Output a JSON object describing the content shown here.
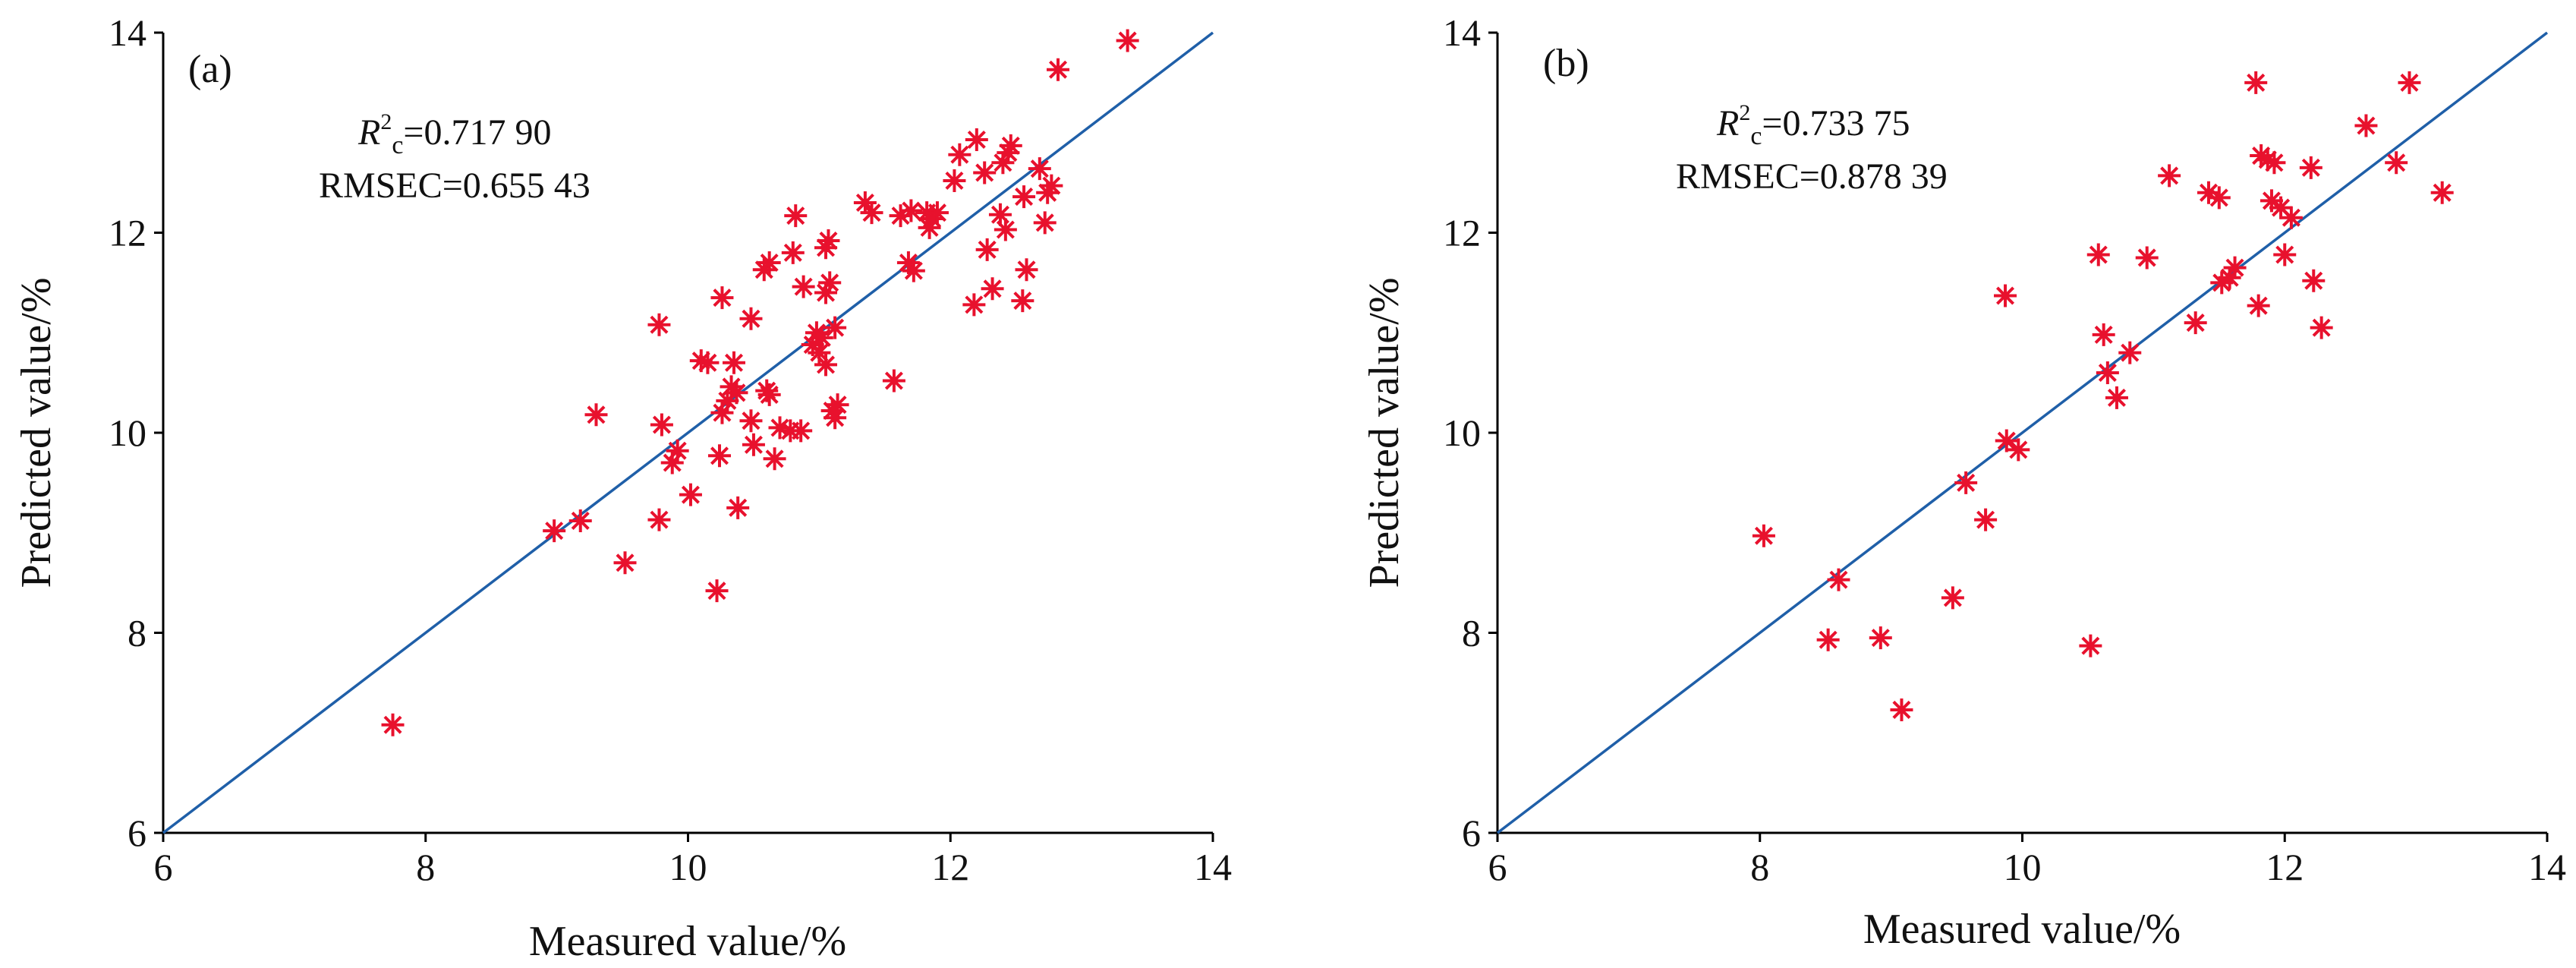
{
  "chart_data": [
    {
      "type": "scatter",
      "panel_label": "(a)",
      "xlabel": "Measured value/%",
      "ylabel": "Predicted value/%",
      "xlim": [
        6,
        14
      ],
      "ylim": [
        6,
        14
      ],
      "xticks": [
        "6",
        "8",
        "10",
        "12",
        "14"
      ],
      "yticks": [
        "6",
        "8",
        "10",
        "12",
        "14"
      ],
      "stats": {
        "r2_symbol": "R",
        "r2_sup": "2",
        "r2_sub": "c",
        "r2_value": "=0.717 90",
        "rmse": "RMSEC=0.655 43"
      },
      "reference_line": {
        "from": [
          6,
          6
        ],
        "to": [
          14,
          14
        ],
        "color": "#1f5fa8"
      },
      "marker": {
        "symbol": "asterisk",
        "color": "#e8112d"
      },
      "grid": false,
      "points": [
        [
          7.75,
          7.08
        ],
        [
          8.98,
          9.02
        ],
        [
          9.18,
          9.12
        ],
        [
          9.3,
          10.18
        ],
        [
          9.52,
          8.7
        ],
        [
          9.78,
          9.13
        ],
        [
          9.78,
          11.08
        ],
        [
          9.8,
          10.08
        ],
        [
          9.88,
          9.7
        ],
        [
          9.92,
          9.82
        ],
        [
          10.02,
          9.38
        ],
        [
          10.1,
          10.72
        ],
        [
          10.15,
          10.7
        ],
        [
          10.22,
          8.42
        ],
        [
          10.24,
          9.77
        ],
        [
          10.26,
          10.2
        ],
        [
          10.26,
          11.35
        ],
        [
          10.3,
          10.32
        ],
        [
          10.33,
          10.46
        ],
        [
          10.35,
          10.7
        ],
        [
          10.37,
          10.4
        ],
        [
          10.38,
          9.25
        ],
        [
          10.48,
          10.12
        ],
        [
          10.48,
          11.14
        ],
        [
          10.5,
          9.88
        ],
        [
          10.58,
          11.63
        ],
        [
          10.6,
          10.42
        ],
        [
          10.62,
          10.38
        ],
        [
          10.62,
          11.7
        ],
        [
          10.66,
          9.74
        ],
        [
          10.7,
          10.05
        ],
        [
          10.78,
          10.02
        ],
        [
          10.8,
          11.8
        ],
        [
          10.82,
          12.17
        ],
        [
          10.86,
          10.02
        ],
        [
          10.88,
          11.46
        ],
        [
          10.95,
          10.88
        ],
        [
          10.98,
          11.0
        ],
        [
          11.0,
          10.8
        ],
        [
          11.02,
          10.95
        ],
        [
          11.05,
          11.4
        ],
        [
          11.05,
          11.85
        ],
        [
          11.05,
          10.68
        ],
        [
          11.07,
          11.92
        ],
        [
          11.08,
          11.5
        ],
        [
          11.1,
          10.22
        ],
        [
          11.12,
          11.05
        ],
        [
          11.12,
          10.15
        ],
        [
          11.14,
          10.28
        ],
        [
          11.35,
          12.3
        ],
        [
          11.4,
          12.2
        ],
        [
          11.57,
          10.52
        ],
        [
          11.62,
          12.17
        ],
        [
          11.68,
          11.7
        ],
        [
          11.7,
          12.22
        ],
        [
          11.72,
          11.62
        ],
        [
          11.82,
          12.2
        ],
        [
          11.84,
          12.05
        ],
        [
          11.86,
          12.14
        ],
        [
          11.9,
          12.2
        ],
        [
          12.03,
          12.52
        ],
        [
          12.07,
          12.78
        ],
        [
          12.18,
          11.28
        ],
        [
          12.2,
          12.93
        ],
        [
          12.26,
          12.6
        ],
        [
          12.28,
          11.83
        ],
        [
          12.32,
          11.44
        ],
        [
          12.38,
          12.18
        ],
        [
          12.4,
          12.7
        ],
        [
          12.42,
          12.03
        ],
        [
          12.44,
          12.8
        ],
        [
          12.46,
          12.87
        ],
        [
          12.55,
          11.32
        ],
        [
          12.56,
          12.36
        ],
        [
          12.58,
          11.63
        ],
        [
          12.68,
          12.64
        ],
        [
          12.72,
          12.1
        ],
        [
          12.74,
          12.4
        ],
        [
          12.77,
          12.47
        ],
        [
          12.82,
          13.63
        ],
        [
          13.35,
          13.92
        ]
      ]
    },
    {
      "type": "scatter",
      "panel_label": "(b)",
      "xlabel": "Measured value/%",
      "ylabel": "Predicted value/%",
      "xlim": [
        6,
        14
      ],
      "ylim": [
        6,
        14
      ],
      "xticks": [
        "6",
        "8",
        "10",
        "12",
        "14"
      ],
      "yticks": [
        "6",
        "8",
        "10",
        "12",
        "14"
      ],
      "stats": {
        "r2_symbol": "R",
        "r2_sup": "2",
        "r2_sub": "c",
        "r2_value": "=0.733 75",
        "rmse": "RMSEC=0.878 39"
      },
      "reference_line": {
        "from": [
          6,
          6
        ],
        "to": [
          14,
          14
        ],
        "color": "#1f5fa8"
      },
      "marker": {
        "symbol": "asterisk",
        "color": "#e8112d"
      },
      "grid": false,
      "points": [
        [
          8.03,
          8.97
        ],
        [
          8.52,
          7.93
        ],
        [
          8.6,
          8.53
        ],
        [
          8.92,
          7.95
        ],
        [
          9.08,
          7.23
        ],
        [
          9.47,
          8.35
        ],
        [
          9.57,
          9.5
        ],
        [
          9.72,
          9.13
        ],
        [
          9.87,
          11.37
        ],
        [
          9.88,
          9.92
        ],
        [
          9.97,
          9.83
        ],
        [
          10.52,
          7.87
        ],
        [
          10.58,
          11.78
        ],
        [
          10.62,
          10.98
        ],
        [
          10.65,
          10.6
        ],
        [
          10.72,
          10.35
        ],
        [
          10.82,
          10.8
        ],
        [
          10.95,
          11.75
        ],
        [
          11.12,
          12.57
        ],
        [
          11.32,
          11.1
        ],
        [
          11.42,
          12.4
        ],
        [
          11.5,
          12.35
        ],
        [
          11.52,
          11.5
        ],
        [
          11.58,
          11.55
        ],
        [
          11.62,
          11.65
        ],
        [
          11.78,
          13.5
        ],
        [
          11.8,
          11.27
        ],
        [
          11.82,
          12.77
        ],
        [
          11.87,
          12.73
        ],
        [
          11.9,
          12.32
        ],
        [
          11.92,
          12.7
        ],
        [
          11.97,
          12.25
        ],
        [
          12.0,
          11.78
        ],
        [
          12.05,
          12.15
        ],
        [
          12.2,
          12.65
        ],
        [
          12.22,
          11.52
        ],
        [
          12.28,
          11.05
        ],
        [
          12.62,
          13.07
        ],
        [
          12.85,
          12.7
        ],
        [
          12.95,
          13.5
        ],
        [
          13.2,
          12.4
        ]
      ]
    }
  ]
}
